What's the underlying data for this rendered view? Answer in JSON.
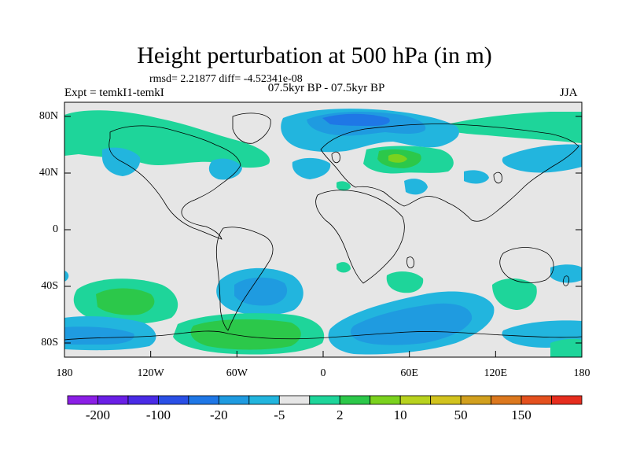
{
  "title": "Height perturbation at 500 hPa (in m)",
  "stats": "rmsd= 2.21877 diff= -4.52341e-08",
  "expt": "Expt = temkI1-temkI",
  "period": "07.5kyr BP - 07.5kyr BP",
  "season": "JJA",
  "lat_labels": [
    {
      "text": "80N",
      "lat": 80
    },
    {
      "text": "40N",
      "lat": 40
    },
    {
      "text": "0",
      "lat": 0
    },
    {
      "text": "40S",
      "lat": -40
    },
    {
      "text": "80S",
      "lat": -80
    }
  ],
  "lon_labels": [
    {
      "text": "180",
      "lon": -180
    },
    {
      "text": "120W",
      "lon": -120
    },
    {
      "text": "60W",
      "lon": -60
    },
    {
      "text": "0",
      "lon": 0
    },
    {
      "text": "60E",
      "lon": 60
    },
    {
      "text": "120E",
      "lon": 120
    },
    {
      "text": "180",
      "lon": 180
    }
  ],
  "colorbar": {
    "colors": [
      "#8b1fe6",
      "#6a1fe6",
      "#4a2be6",
      "#2a4fe6",
      "#1f77e6",
      "#1f9be0",
      "#22b5de",
      "#e6e6e6",
      "#1ed59a",
      "#2cc84a",
      "#7bd21e",
      "#b8d21e",
      "#d2c31e",
      "#d2a01e",
      "#dc781e",
      "#e4501e",
      "#e62d1e"
    ],
    "labels": [
      {
        "text": "-200",
        "boundary": 1
      },
      {
        "text": "-100",
        "boundary": 3
      },
      {
        "text": "-20",
        "boundary": 5
      },
      {
        "text": "-5",
        "boundary": 7
      },
      {
        "text": "2",
        "boundary": 9
      },
      {
        "text": "10",
        "boundary": 11
      },
      {
        "text": "50",
        "boundary": 13
      },
      {
        "text": "150",
        "boundary": 15
      }
    ]
  }
}
